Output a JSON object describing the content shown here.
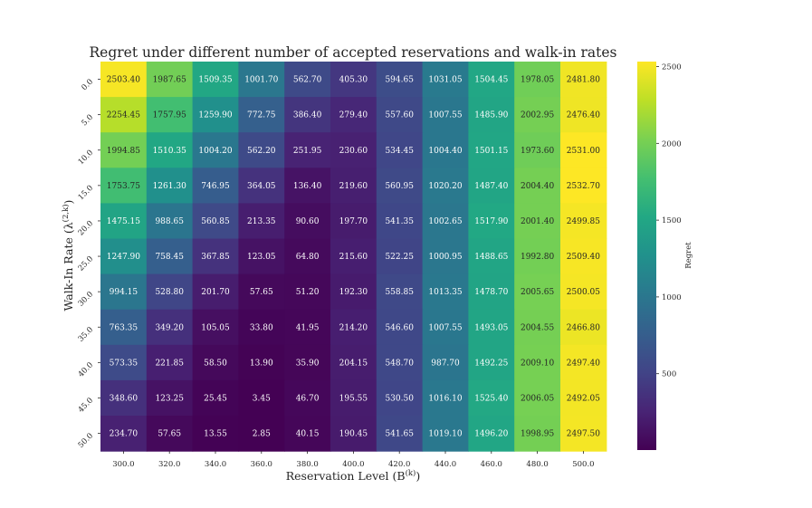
{
  "chart_data": {
    "type": "heatmap",
    "title": "Regret under different number of accepted reservations and walk-in rates",
    "xlabel_main": "Reservation Level ",
    "xlabel_math": "(B",
    "xlabel_sup": "(k)",
    "xlabel_close": ")",
    "ylabel_main": "Walk-In Rate ",
    "ylabel_math": "(λ",
    "ylabel_sup": "(2,k)",
    "ylabel_close": ")",
    "x_categories": [
      "300.0",
      "320.0",
      "340.0",
      "360.0",
      "380.0",
      "400.0",
      "420.0",
      "440.0",
      "460.0",
      "480.0",
      "500.0"
    ],
    "y_categories": [
      "0.0",
      "5.0",
      "10.0",
      "15.0",
      "20.0",
      "25.0",
      "30.0",
      "35.0",
      "40.0",
      "45.0",
      "50.0"
    ],
    "values": [
      [
        2503.4,
        1987.65,
        1509.35,
        1001.7,
        562.7,
        405.3,
        594.65,
        1031.05,
        1504.45,
        1978.05,
        2481.8
      ],
      [
        2254.45,
        1757.95,
        1259.9,
        772.75,
        386.4,
        279.4,
        557.6,
        1007.55,
        1485.9,
        2002.95,
        2476.4
      ],
      [
        1994.85,
        1510.35,
        1004.2,
        562.2,
        251.95,
        230.6,
        534.45,
        1004.4,
        1501.15,
        1973.6,
        2531.0
      ],
      [
        1753.75,
        1261.3,
        746.95,
        364.05,
        136.4,
        219.6,
        560.95,
        1020.2,
        1487.4,
        2004.4,
        2532.7
      ],
      [
        1475.15,
        988.65,
        560.85,
        213.35,
        90.6,
        197.7,
        541.35,
        1002.65,
        1517.9,
        2001.4,
        2499.85
      ],
      [
        1247.9,
        758.45,
        367.85,
        123.05,
        64.8,
        215.6,
        522.25,
        1000.95,
        1488.65,
        1992.8,
        2509.4
      ],
      [
        994.15,
        528.8,
        201.7,
        57.65,
        51.2,
        192.3,
        558.85,
        1013.35,
        1478.7,
        2005.65,
        2500.05
      ],
      [
        763.35,
        349.2,
        105.05,
        33.8,
        41.95,
        214.2,
        546.6,
        1007.55,
        1493.05,
        2004.55,
        2466.8
      ],
      [
        573.35,
        221.85,
        58.5,
        13.9,
        35.9,
        204.15,
        548.7,
        987.7,
        1492.25,
        2009.1,
        2497.4
      ],
      [
        348.6,
        123.25,
        25.45,
        3.45,
        46.7,
        195.55,
        530.5,
        1016.1,
        1525.4,
        2006.05,
        2492.05
      ],
      [
        234.7,
        57.65,
        13.55,
        2.85,
        40.15,
        190.45,
        541.65,
        1019.1,
        1496.2,
        1998.95,
        2497.5
      ]
    ],
    "value_format": "2 decimals",
    "colormap": "viridis",
    "color_range": [
      2.85,
      2532.7
    ],
    "colorbar_label": "Regret",
    "colorbar_ticks": [
      500,
      1000,
      1500,
      2000,
      2500
    ],
    "grid": false
  }
}
